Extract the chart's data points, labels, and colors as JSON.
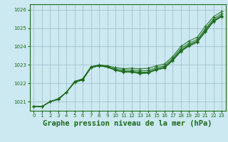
{
  "background_color": "#cce8f0",
  "grid_color": "#99bbcc",
  "line_color": "#1a6b1a",
  "title": "Graphe pression niveau de la mer (hPa)",
  "title_fontsize": 7.5,
  "xlim": [
    -0.5,
    23.5
  ],
  "ylim": [
    1020.5,
    1026.3
  ],
  "yticks": [
    1021,
    1022,
    1023,
    1024,
    1025,
    1026
  ],
  "xticks": [
    0,
    1,
    2,
    3,
    4,
    5,
    6,
    7,
    8,
    9,
    10,
    11,
    12,
    13,
    14,
    15,
    16,
    17,
    18,
    19,
    20,
    21,
    22,
    23
  ],
  "series": [
    [
      1020.75,
      1020.72,
      1021.0,
      1021.1,
      1021.5,
      1022.1,
      1022.25,
      1022.9,
      1023.0,
      1022.95,
      1022.85,
      1022.8,
      1022.82,
      1022.78,
      1022.82,
      1022.95,
      1023.05,
      1023.45,
      1024.0,
      1024.3,
      1024.5,
      1025.1,
      1025.62,
      1025.9
    ],
    [
      1020.75,
      1020.72,
      1021.0,
      1021.15,
      1021.52,
      1022.08,
      1022.22,
      1022.88,
      1022.98,
      1022.92,
      1022.78,
      1022.72,
      1022.72,
      1022.68,
      1022.7,
      1022.85,
      1022.95,
      1023.35,
      1023.88,
      1024.18,
      1024.38,
      1024.95,
      1025.5,
      1025.78
    ],
    [
      1020.75,
      1020.72,
      1021.0,
      1021.15,
      1021.5,
      1022.05,
      1022.18,
      1022.85,
      1022.95,
      1022.88,
      1022.72,
      1022.65,
      1022.65,
      1022.6,
      1022.62,
      1022.78,
      1022.88,
      1023.28,
      1023.8,
      1024.1,
      1024.3,
      1024.88,
      1025.42,
      1025.7
    ],
    [
      1020.75,
      1020.72,
      1021.0,
      1021.15,
      1021.5,
      1022.05,
      1022.18,
      1022.85,
      1022.95,
      1022.88,
      1022.72,
      1022.62,
      1022.62,
      1022.55,
      1022.58,
      1022.75,
      1022.85,
      1023.25,
      1023.75,
      1024.05,
      1024.25,
      1024.82,
      1025.38,
      1025.65
    ],
    [
      1020.75,
      1020.72,
      1021.0,
      1021.15,
      1021.5,
      1022.05,
      1022.18,
      1022.85,
      1022.95,
      1022.88,
      1022.7,
      1022.6,
      1022.6,
      1022.52,
      1022.55,
      1022.72,
      1022.82,
      1023.22,
      1023.72,
      1024.02,
      1024.22,
      1024.78,
      1025.35,
      1025.62
    ]
  ]
}
